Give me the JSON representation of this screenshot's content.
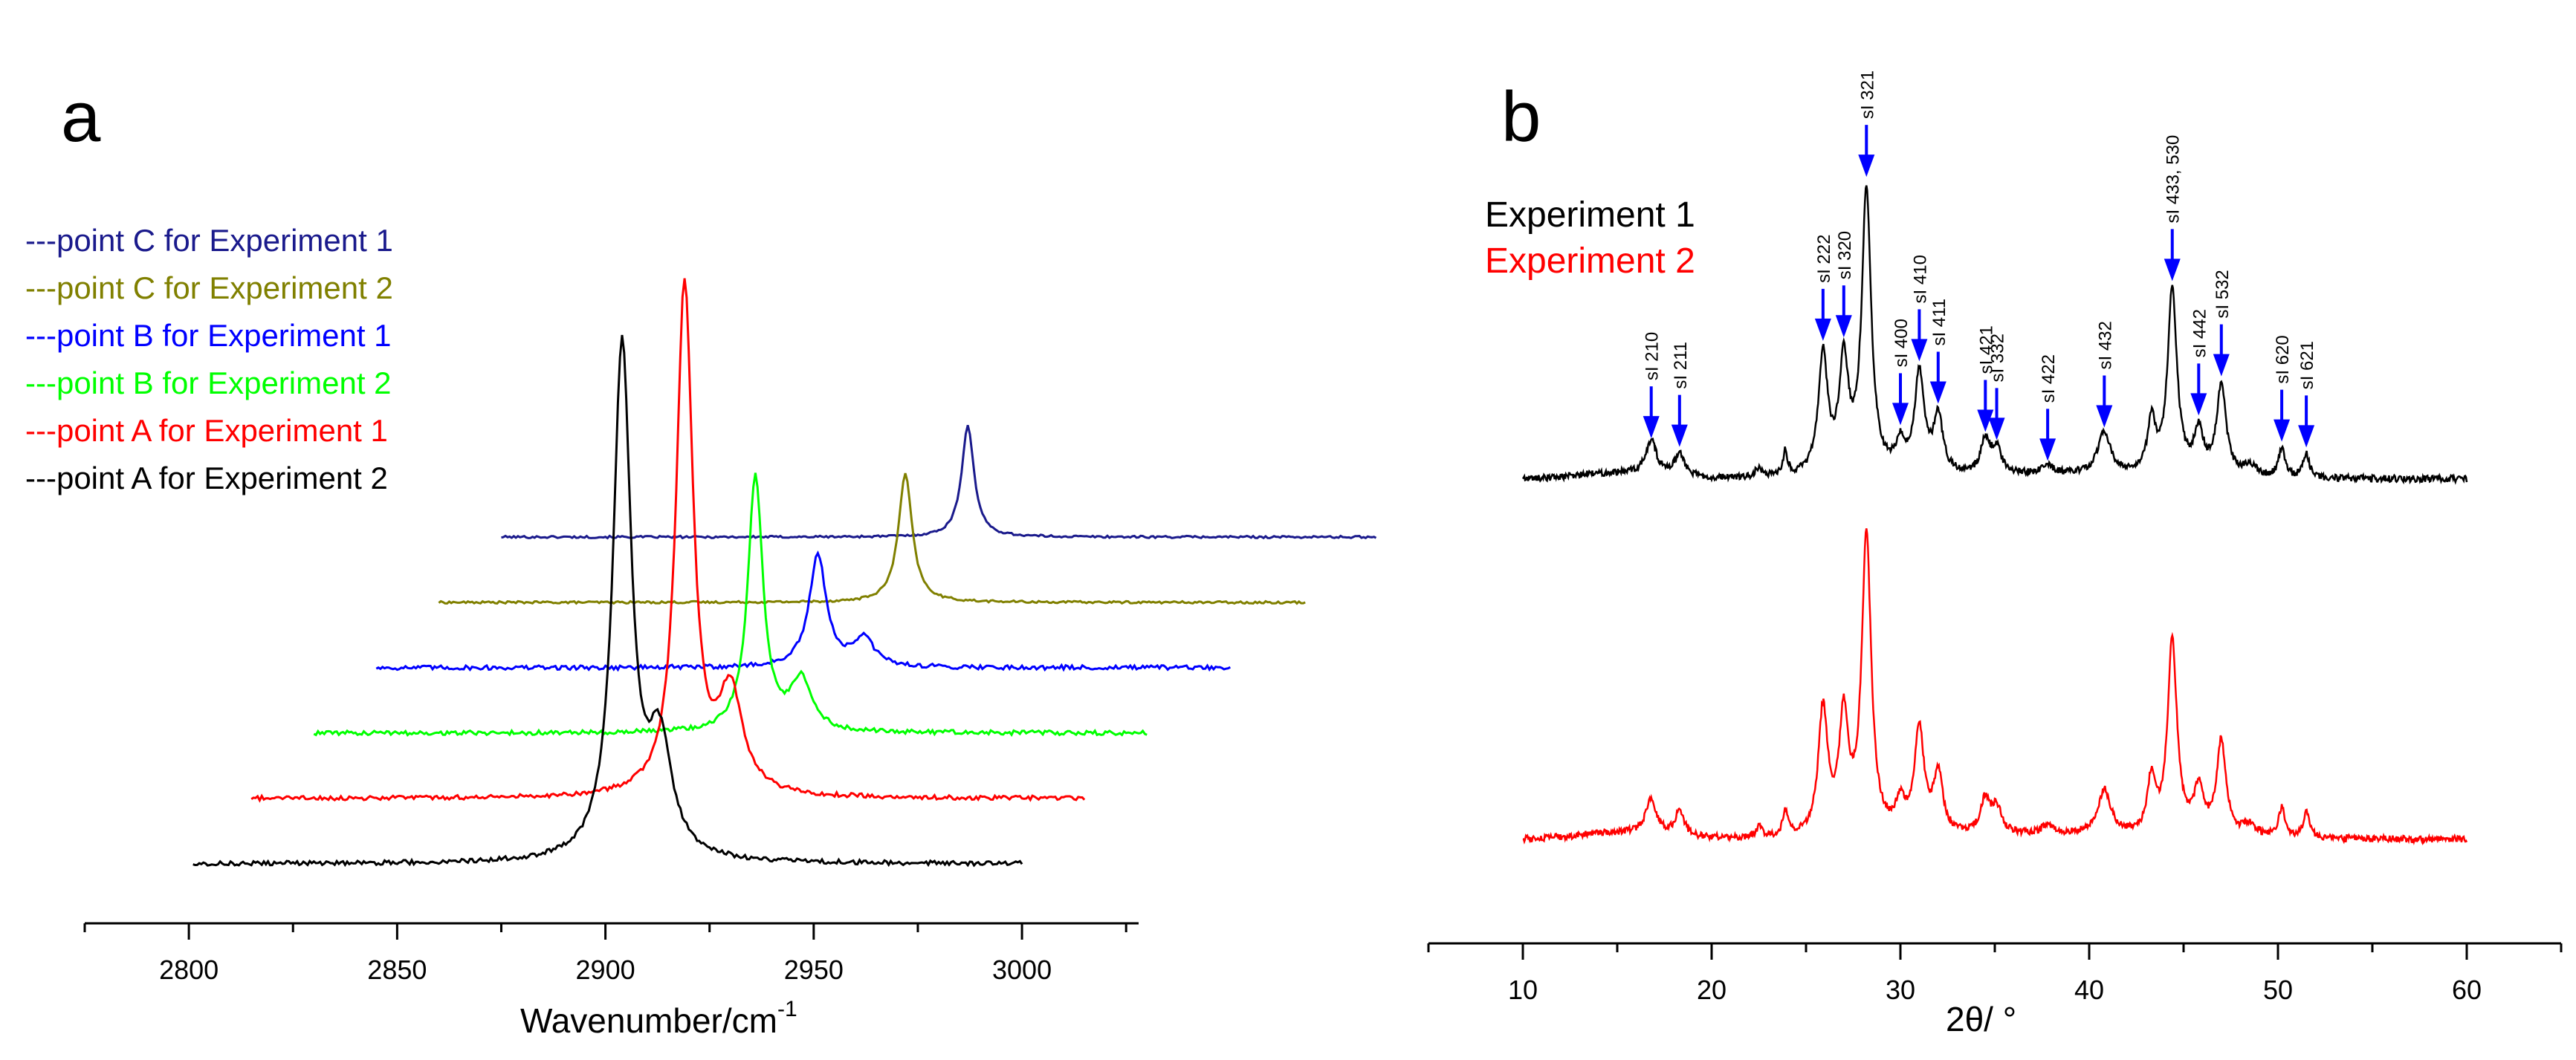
{
  "colors": {
    "black": "#000000",
    "red": "#ff0000",
    "navy": "#1a1a8c",
    "olive": "#808000",
    "blue": "#0000ff",
    "green": "#00ff00",
    "arrow": "#0000ff"
  },
  "panel_labels": {
    "a": "a",
    "b": "b"
  },
  "chart_data": [
    {
      "id": "a",
      "type": "line",
      "title": "",
      "xlabel": "Wavenumber/cm",
      "xlabel_sup": "-1",
      "ylabel": "",
      "xlim": [
        2775,
        3028
      ],
      "xticks": [
        "2800",
        "2850",
        "2900",
        "2950",
        "3000"
      ],
      "xtick_values": [
        2800,
        2850,
        2900,
        2950,
        3000
      ],
      "legend_position": "top-left",
      "series": [
        {
          "name": "---point C for Experiment 1",
          "color_key": "navy",
          "x_range": [
            2875,
            3085
          ],
          "offset": 5,
          "peaks": [
            [
              2987,
              1.0,
              1.8
            ]
          ],
          "baseline_noise": 0.01
        },
        {
          "name": "---point C for Experiment 2",
          "color_key": "olive",
          "x_range": [
            2860,
            3068
          ],
          "offset": 4,
          "peaks": [
            [
              2972,
              1.15,
              2.0
            ]
          ],
          "baseline_noise": 0.01
        },
        {
          "name": "---point B for Experiment 1",
          "color_key": "blue",
          "x_range": [
            2845,
            3050
          ],
          "offset": 3,
          "peaks": [
            [
              2951,
              1.0,
              2.5
            ],
            [
              2962,
              0.25,
              3
            ]
          ],
          "baseline_noise": 0.02
        },
        {
          "name": "---point B for Experiment 2",
          "color_key": "green",
          "x_range": [
            2830,
            3030
          ],
          "offset": 2,
          "peaks": [
            [
              2936,
              2.3,
              2.2
            ],
            [
              2947,
              0.45,
              3
            ]
          ],
          "baseline_noise": 0.02
        },
        {
          "name": "---point A for Experiment 1",
          "color_key": "red",
          "x_range": [
            2815,
            3015
          ],
          "offset": 1,
          "peaks": [
            [
              2919,
              4.6,
              2.4
            ],
            [
              2930,
              0.9,
              3.5
            ]
          ],
          "baseline_noise": 0.02
        },
        {
          "name": "---point A for Experiment 2",
          "color_key": "black",
          "x_range": [
            2801,
            3000
          ],
          "offset": 0,
          "peaks": [
            [
              2904,
              4.6,
              2.6
            ],
            [
              2913,
              1.0,
              3.5
            ]
          ],
          "baseline_noise": 0.02
        }
      ]
    },
    {
      "id": "b",
      "type": "line",
      "title": "",
      "xlabel": "2θ/ °",
      "ylabel": "",
      "xlim": [
        5,
        65
      ],
      "xticks": [
        "10",
        "20",
        "30",
        "40",
        "50",
        "60"
      ],
      "xtick_values": [
        10,
        20,
        30,
        40,
        50,
        60
      ],
      "legend_position": "top-left",
      "series": [
        {
          "name": "Experiment 1",
          "color_key": "black",
          "x_range": [
            10,
            60
          ],
          "offset": 1
        },
        {
          "name": "Experiment 2",
          "color_key": "red",
          "x_range": [
            10,
            60
          ],
          "offset": 0
        }
      ],
      "peaks": [
        [
          16.8,
          0.35,
          0.35
        ],
        [
          18.3,
          0.25,
          0.3
        ],
        [
          22.5,
          0.1,
          0.2
        ],
        [
          23.9,
          0.25,
          0.15
        ],
        [
          25.9,
          1.25,
          0.3
        ],
        [
          27.0,
          1.15,
          0.3
        ],
        [
          28.2,
          3.0,
          0.3
        ],
        [
          30.0,
          0.3,
          0.3
        ],
        [
          31.0,
          1.05,
          0.3
        ],
        [
          32.0,
          0.6,
          0.3
        ],
        [
          34.5,
          0.35,
          0.3
        ],
        [
          35.1,
          0.25,
          0.3
        ],
        [
          37.8,
          0.1,
          0.3
        ],
        [
          40.8,
          0.45,
          0.4
        ],
        [
          43.3,
          0.55,
          0.25
        ],
        [
          44.4,
          1.95,
          0.3
        ],
        [
          45.8,
          0.45,
          0.3
        ],
        [
          47.0,
          0.95,
          0.3
        ],
        [
          48.5,
          0.12,
          0.4
        ],
        [
          50.2,
          0.3,
          0.2
        ],
        [
          51.5,
          0.25,
          0.2
        ]
      ],
      "annotations": [
        {
          "label": "sI 210",
          "x": 16.8
        },
        {
          "label": "sI 211",
          "x": 18.3
        },
        {
          "label": "sI 222",
          "x": 25.9
        },
        {
          "label": "sI 320",
          "x": 27.0
        },
        {
          "label": "sI 321",
          "x": 28.2
        },
        {
          "label": "sI 400",
          "x": 30.0
        },
        {
          "label": "sI 410",
          "x": 31.0
        },
        {
          "label": "sI 411",
          "x": 32.0
        },
        {
          "label": "sI 421",
          "x": 34.5
        },
        {
          "label": "sI 332",
          "x": 35.1
        },
        {
          "label": "sI 422",
          "x": 37.8
        },
        {
          "label": "sI 432",
          "x": 40.8
        },
        {
          "label": "sI 433, 530",
          "x": 44.4
        },
        {
          "label": "sI 442",
          "x": 45.8
        },
        {
          "label": "sI 532",
          "x": 47.0
        },
        {
          "label": "sI 620",
          "x": 50.2
        },
        {
          "label": "sI 621",
          "x": 51.5
        }
      ]
    }
  ]
}
